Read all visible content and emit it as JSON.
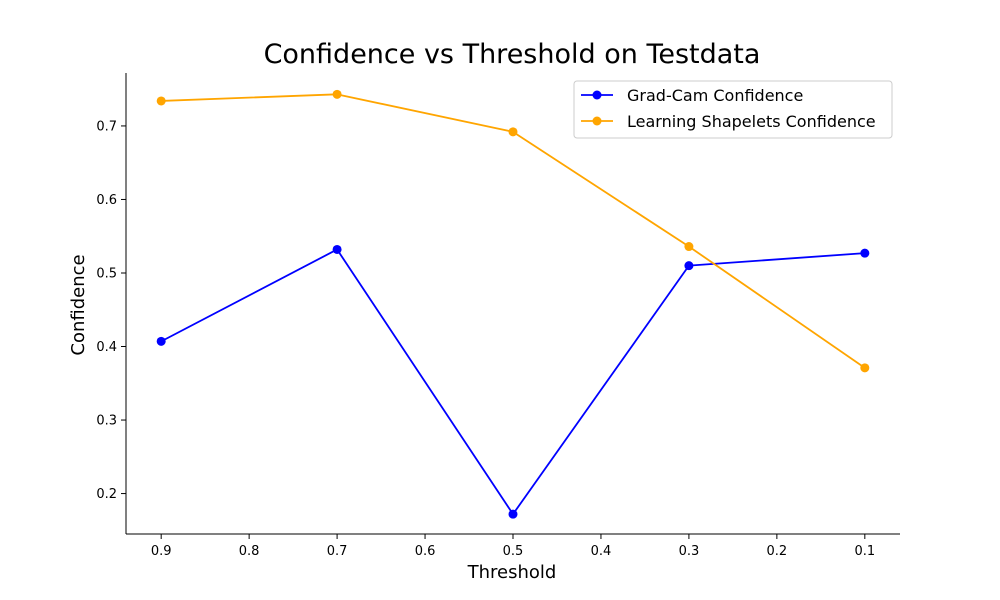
{
  "chart_data": {
    "type": "line",
    "title": "Confidence vs Threshold on Testdata",
    "xlabel": "Threshold",
    "ylabel": "Confidence",
    "x_reversed": true,
    "xlim": [
      0.94,
      0.06
    ],
    "ylim": [
      0.145,
      0.772
    ],
    "x_ticks": [
      0.9,
      0.8,
      0.7,
      0.6,
      0.5,
      0.4,
      0.3,
      0.2,
      0.1
    ],
    "x_tick_labels": [
      "0.9",
      "0.8",
      "0.7",
      "0.6",
      "0.5",
      "0.4",
      "0.3",
      "0.2",
      "0.1"
    ],
    "y_ticks": [
      0.2,
      0.3,
      0.4,
      0.5,
      0.6,
      0.7
    ],
    "y_tick_labels": [
      "0.2",
      "0.3",
      "0.4",
      "0.5",
      "0.6",
      "0.7"
    ],
    "x": [
      0.9,
      0.7,
      0.5,
      0.3,
      0.1
    ],
    "series": [
      {
        "name": "Grad-Cam Confidence",
        "color": "#0000ff",
        "values": [
          0.407,
          0.532,
          0.172,
          0.51,
          0.527
        ]
      },
      {
        "name": "Learning Shapelets Confidence",
        "color": "#ffa500",
        "values": [
          0.734,
          0.743,
          0.692,
          0.536,
          0.371
        ]
      }
    ],
    "legend_position": "top-right",
    "grid": false
  }
}
